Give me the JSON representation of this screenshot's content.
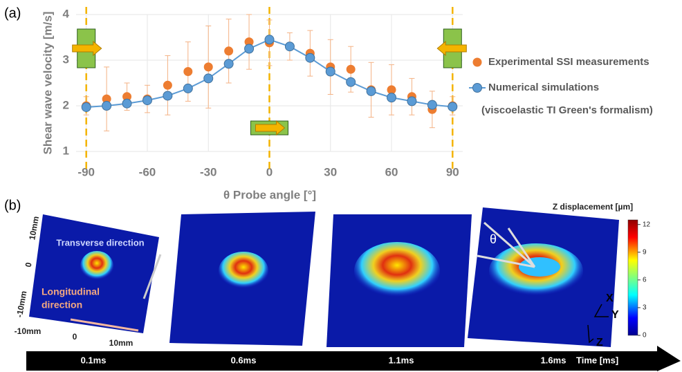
{
  "chart_data": {
    "type": "scatter",
    "panel_label": "(a)",
    "x_label": "θ Probe angle [°]",
    "y_label": "Shear wave velocity [m/s]",
    "x": [
      -90,
      -80,
      -70,
      -60,
      -50,
      -40,
      -30,
      -20,
      -10,
      0,
      10,
      20,
      30,
      40,
      50,
      60,
      70,
      80,
      90
    ],
    "series": [
      {
        "name": "Experimental SSI measurements",
        "color": "#ed7d31",
        "style": "points",
        "values": [
          2.0,
          2.15,
          2.2,
          2.15,
          2.45,
          2.75,
          2.85,
          3.2,
          3.4,
          3.38,
          3.3,
          3.15,
          2.85,
          2.8,
          2.35,
          2.35,
          2.2,
          1.92,
          2.0
        ],
        "errors": [
          0.2,
          0.7,
          0.3,
          0.3,
          0.65,
          0.65,
          0.9,
          0.7,
          0.6,
          0.5,
          0.3,
          0.5,
          0.6,
          0.5,
          0.6,
          0.55,
          0.4,
          0.4,
          0.2
        ]
      },
      {
        "name": "Numerical simulations",
        "color": "#5b9bd5",
        "style": "line-points",
        "values": [
          1.97,
          2.0,
          2.05,
          2.12,
          2.22,
          2.38,
          2.6,
          2.92,
          3.25,
          3.45,
          3.3,
          3.05,
          2.75,
          2.52,
          2.32,
          2.18,
          2.1,
          2.02,
          1.98
        ]
      }
    ],
    "legend_note": "(viscoelastic TI Green's formalism)",
    "vlines": [
      -90,
      0,
      90
    ],
    "vline_color": "#f4b400",
    "xlim": [
      -95,
      95
    ],
    "ylim": [
      1,
      4
    ],
    "xticks": [
      -90,
      -60,
      -30,
      0,
      30,
      60,
      90
    ],
    "yticks": [
      1,
      2,
      3,
      4
    ],
    "grid": true
  },
  "panel_b": {
    "panel_label": "(b)",
    "colorbar": {
      "title": "Z displacement [µm]",
      "ticks": [
        0,
        3,
        6,
        9,
        12
      ],
      "lim": [
        0,
        12.5
      ]
    },
    "times": [
      "0.1ms",
      "0.6ms",
      "1.1ms",
      "1.6ms"
    ],
    "time_label": "Time [ms]",
    "axis_texts": [
      "10mm",
      "0",
      "-10mm",
      "-10mm",
      "0",
      "10mm"
    ],
    "transverse": "Transverse direction",
    "longitudinal": [
      "Longitudinal",
      "direction"
    ],
    "angle": "θ",
    "axes": [
      "X",
      "Y",
      "Z"
    ]
  }
}
